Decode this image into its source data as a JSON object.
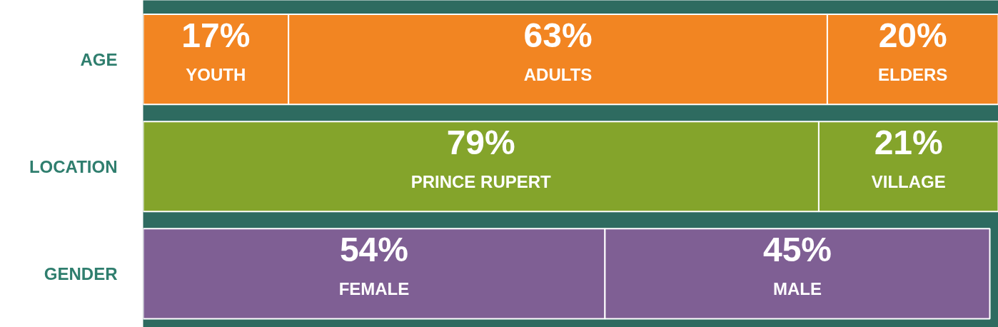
{
  "chart_data": {
    "type": "bar",
    "orientation": "horizontal",
    "stacked": true,
    "categories": [
      "AGE",
      "LOCATION",
      "GENDER"
    ],
    "xlim": [
      0,
      100
    ],
    "tick_labels": "y",
    "grid": false,
    "series": [
      {
        "name": "YOUTH",
        "color": "#f28522",
        "values": [
          17,
          null,
          null
        ],
        "value_labels": [
          "17%",
          null,
          null
        ]
      },
      {
        "name": "ADULTS",
        "color": "#f28522",
        "values": [
          63,
          null,
          null
        ],
        "value_labels": [
          "63%",
          null,
          null
        ]
      },
      {
        "name": "ELDERS",
        "color": "#f28522",
        "values": [
          20,
          null,
          null
        ],
        "value_labels": [
          "20%",
          null,
          null
        ]
      },
      {
        "name": "PRINCE RUPERT",
        "color": "#84a42b",
        "values": [
          null,
          79,
          null
        ],
        "value_labels": [
          null,
          "79%",
          null
        ]
      },
      {
        "name": "VILLAGE",
        "color": "#84a42b",
        "values": [
          null,
          21,
          null
        ],
        "value_labels": [
          null,
          "21%",
          null
        ]
      },
      {
        "name": "FEMALE",
        "color": "#7f5f94",
        "values": [
          null,
          null,
          54
        ],
        "value_labels": [
          null,
          null,
          "54%"
        ]
      },
      {
        "name": "MALE",
        "color": "#7f5f94",
        "values": [
          null,
          null,
          45
        ],
        "value_labels": [
          null,
          null,
          "45%"
        ]
      }
    ]
  }
}
